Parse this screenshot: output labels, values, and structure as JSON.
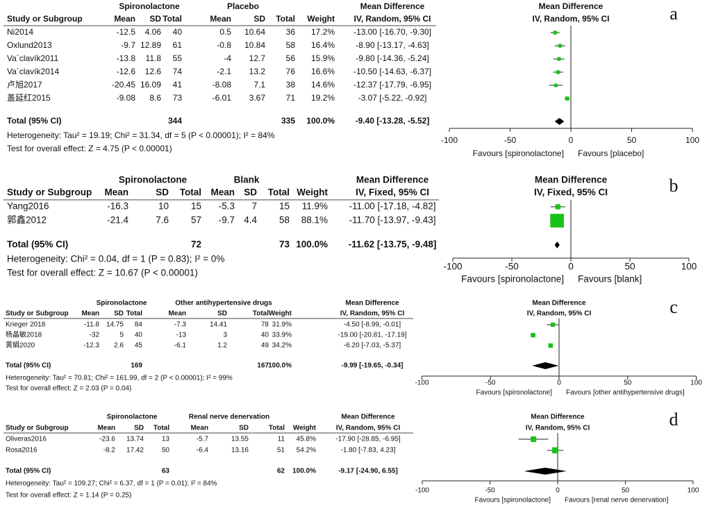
{
  "chart_data": [
    {
      "type": "forest",
      "panel_label": "a",
      "group_headers": [
        "Spironolactone",
        "Placebo"
      ],
      "columns": [
        "Study or Subgroup",
        "Mean",
        "SD",
        "Total",
        "Mean",
        "SD",
        "Total",
        "Weight"
      ],
      "effect_header": "Mean Difference",
      "effect_method": "IV, Random, 95% CI",
      "studies": [
        {
          "name": "Ni2014",
          "exp": [
            -12.5,
            4.06,
            40
          ],
          "ctrl": [
            0.5,
            10.64,
            36
          ],
          "weight": 17.2,
          "weight_label": "17.2%",
          "md": -13.0,
          "ci_low": -16.7,
          "ci_high": -9.3,
          "md_label": "-13.00 [-16.70, -9.30]"
        },
        {
          "name": "Oxlund2013",
          "exp": [
            -9.7,
            12.89,
            61
          ],
          "ctrl": [
            -0.8,
            10.84,
            58
          ],
          "weight": 16.4,
          "weight_label": "16.4%",
          "md": -8.9,
          "ci_low": -13.17,
          "ci_high": -4.63,
          "md_label": "-8.90 [-13.17, -4.63]"
        },
        {
          "name": "Va´clavík2011",
          "exp": [
            -13.8,
            11.8,
            55
          ],
          "ctrl": [
            -4,
            12.7,
            56
          ],
          "weight": 15.9,
          "weight_label": "15.9%",
          "md": -9.8,
          "ci_low": -14.36,
          "ci_high": -5.24,
          "md_label": "-9.80 [-14.36, -5.24]"
        },
        {
          "name": "Va´clavík2014",
          "exp": [
            -12.6,
            12.6,
            74
          ],
          "ctrl": [
            -2.1,
            13.2,
            76
          ],
          "weight": 16.6,
          "weight_label": "16.6%",
          "md": -10.5,
          "ci_low": -14.63,
          "ci_high": -6.37,
          "md_label": "-10.50 [-14.63, -6.37]"
        },
        {
          "name": "卢旭2017",
          "exp": [
            -20.45,
            16.09,
            41
          ],
          "ctrl": [
            -8.08,
            7.1,
            38
          ],
          "weight": 14.6,
          "weight_label": "14.6%",
          "md": -12.37,
          "ci_low": -17.79,
          "ci_high": -6.95,
          "md_label": "-12.37 [-17.79, -6.95]"
        },
        {
          "name": "盖延红2015",
          "exp": [
            -9.08,
            8.6,
            73
          ],
          "ctrl": [
            -6.01,
            3.67,
            71
          ],
          "weight": 19.2,
          "weight_label": "19.2%",
          "md": -3.07,
          "ci_low": -5.22,
          "ci_high": -0.92,
          "md_label": "-3.07 [-5.22, -0.92]"
        }
      ],
      "total": {
        "name": "Total (95% CI)",
        "exp_total": 344,
        "ctrl_total": 335,
        "weight_label": "100.0%",
        "md": -9.4,
        "ci_low": -13.28,
        "ci_high": -5.52,
        "md_label": "-9.40 [-13.28, -5.52]"
      },
      "heterogeneity": "Heterogeneity: Tau² = 19.19; Chi² = 31.34, df = 5 (P < 0.00001); I² = 84%",
      "overall_test": "Test for overall effect: Z = 4.75 (P < 0.00001)",
      "xlim": [
        -100,
        100
      ],
      "xticks": [
        -100,
        -50,
        0,
        50,
        100
      ],
      "favours_left": "Favours [spironolactone]",
      "favours_right": "Favours [placebo]",
      "marker_color": "#19c219",
      "diamond_color": "#000000"
    },
    {
      "type": "forest",
      "panel_label": "b",
      "group_headers": [
        "Spironolactone",
        "Blank"
      ],
      "columns": [
        "Study or Subgroup",
        "Mean",
        "SD",
        "Total",
        "Mean",
        "SD",
        "Total",
        "Weight"
      ],
      "effect_header": "Mean Difference",
      "effect_method": "IV, Fixed, 95% CI",
      "studies": [
        {
          "name": "Yang2016",
          "exp": [
            -16.3,
            10,
            15
          ],
          "ctrl": [
            -5.3,
            7,
            15
          ],
          "weight": 11.9,
          "weight_label": "11.9%",
          "md": -11.0,
          "ci_low": -17.18,
          "ci_high": -4.82,
          "md_label": "-11.00 [-17.18, -4.82]"
        },
        {
          "name": "郭鑫2012",
          "exp": [
            -21.4,
            7.6,
            57
          ],
          "ctrl": [
            -9.7,
            4.4,
            58
          ],
          "weight": 88.1,
          "weight_label": "88.1%",
          "md": -11.7,
          "ci_low": -13.97,
          "ci_high": -9.43,
          "md_label": "-11.70 [-13.97, -9.43]"
        }
      ],
      "total": {
        "name": "Total (95% CI)",
        "exp_total": 72,
        "ctrl_total": 73,
        "weight_label": "100.0%",
        "md": -11.62,
        "ci_low": -13.75,
        "ci_high": -9.48,
        "md_label": "-11.62 [-13.75, -9.48]"
      },
      "heterogeneity": "Heterogeneity: Chi² = 0.04, df = 1 (P = 0.83); I² = 0%",
      "overall_test": "Test for overall effect: Z = 10.67 (P < 0.00001)",
      "xlim": [
        -100,
        100
      ],
      "xticks": [
        -100,
        -50,
        0,
        50,
        100
      ],
      "favours_left": "Favours [spironolactone]",
      "favours_right": "Favours [blank]",
      "marker_color": "#19c219",
      "diamond_color": "#000000"
    },
    {
      "type": "forest",
      "panel_label": "c",
      "group_headers": [
        "Spironolactone",
        "Other antihypertensive drugs"
      ],
      "columns": [
        "Study or Subgroup",
        "Mean",
        "SD",
        "Total",
        "Mean",
        "SD",
        "Total",
        "Weight"
      ],
      "effect_header": "Mean Difference",
      "effect_method": "IV, Random, 95% CI",
      "studies": [
        {
          "name": "Krieger 2018",
          "exp": [
            -11.8,
            14.75,
            84
          ],
          "ctrl": [
            -7.3,
            14.41,
            78
          ],
          "weight": 31.9,
          "weight_label": "31.9%",
          "md": -4.5,
          "ci_low": -8.99,
          "ci_high": -0.01,
          "md_label": "-4.50 [-8.99, -0.01]"
        },
        {
          "name": "杨晶敏2018",
          "exp": [
            -32,
            5,
            40
          ],
          "ctrl": [
            -13,
            3,
            40
          ],
          "weight": 33.9,
          "weight_label": "33.9%",
          "md": -19.0,
          "ci_low": -20.81,
          "ci_high": -17.19,
          "md_label": "-19.00 [-20.81, -17.19]"
        },
        {
          "name": "黄娟2020",
          "exp": [
            -12.3,
            2.6,
            45
          ],
          "ctrl": [
            -6.1,
            1.2,
            49
          ],
          "weight": 34.2,
          "weight_label": "34.2%",
          "md": -6.2,
          "ci_low": -7.03,
          "ci_high": -5.37,
          "md_label": "-6.20 [-7.03, -5.37]"
        }
      ],
      "total": {
        "name": "Total (95% CI)",
        "exp_total": 169,
        "ctrl_total": 167,
        "weight_label": "100.0%",
        "md": -9.99,
        "ci_low": -19.65,
        "ci_high": -0.34,
        "md_label": "-9.99 [-19.65, -0.34]"
      },
      "heterogeneity": "Heterogeneity: Tau² = 70.81; Chi² = 161.99, df = 2 (P < 0.00001); I² = 99%",
      "overall_test": "Test for overall effect: Z = 2.03 (P = 0.04)",
      "xlim": [
        -100,
        100
      ],
      "xticks": [
        -100,
        -50,
        0,
        50,
        100
      ],
      "favours_left": "Favours [spironolactone]",
      "favours_right": "Favours [other antihypertensive drugs]",
      "marker_color": "#19c219",
      "diamond_color": "#000000"
    },
    {
      "type": "forest",
      "panel_label": "d",
      "group_headers": [
        "Spironolactone",
        "Renal nerve denervation"
      ],
      "columns": [
        "Study or Subgroup",
        "Mean",
        "SD",
        "Total",
        "Mean",
        "SD",
        "Total",
        "Weight"
      ],
      "effect_header": "Mean Difference",
      "effect_method": "IV, Random, 95% CI",
      "studies": [
        {
          "name": "Oliveras2016",
          "exp": [
            -23.6,
            13.74,
            13
          ],
          "ctrl": [
            -5.7,
            13.55,
            11
          ],
          "weight": 45.8,
          "weight_label": "45.8%",
          "md": -17.9,
          "ci_low": -28.85,
          "ci_high": -6.95,
          "md_label": "-17.90 [-28.85, -6.95]"
        },
        {
          "name": "Rosa2016",
          "exp": [
            -8.2,
            17.42,
            50
          ],
          "ctrl": [
            -6.4,
            13.16,
            51
          ],
          "weight": 54.2,
          "weight_label": "54.2%",
          "md": -1.8,
          "ci_low": -7.83,
          "ci_high": 4.23,
          "md_label": "-1.80 [-7.83, 4.23]"
        }
      ],
      "total": {
        "name": "Total (95% CI)",
        "exp_total": 63,
        "ctrl_total": 62,
        "weight_label": "100.0%",
        "md": -9.17,
        "ci_low": -24.9,
        "ci_high": 6.55,
        "md_label": "-9.17 [-24.90, 6.55]"
      },
      "heterogeneity": "Heterogeneity: Tau² = 109.27; Chi² = 6.37, df = 1 (P = 0.01); I² = 84%",
      "overall_test": "Test for overall effect: Z = 1.14 (P = 0.25)",
      "xlim": [
        -100,
        100
      ],
      "xticks": [
        -100,
        -50,
        0,
        50,
        100
      ],
      "favours_left": "Favours [spironolactone]",
      "favours_right": "Favours [renal nerve denervation]",
      "marker_color": "#19c219",
      "diamond_color": "#000000"
    }
  ]
}
